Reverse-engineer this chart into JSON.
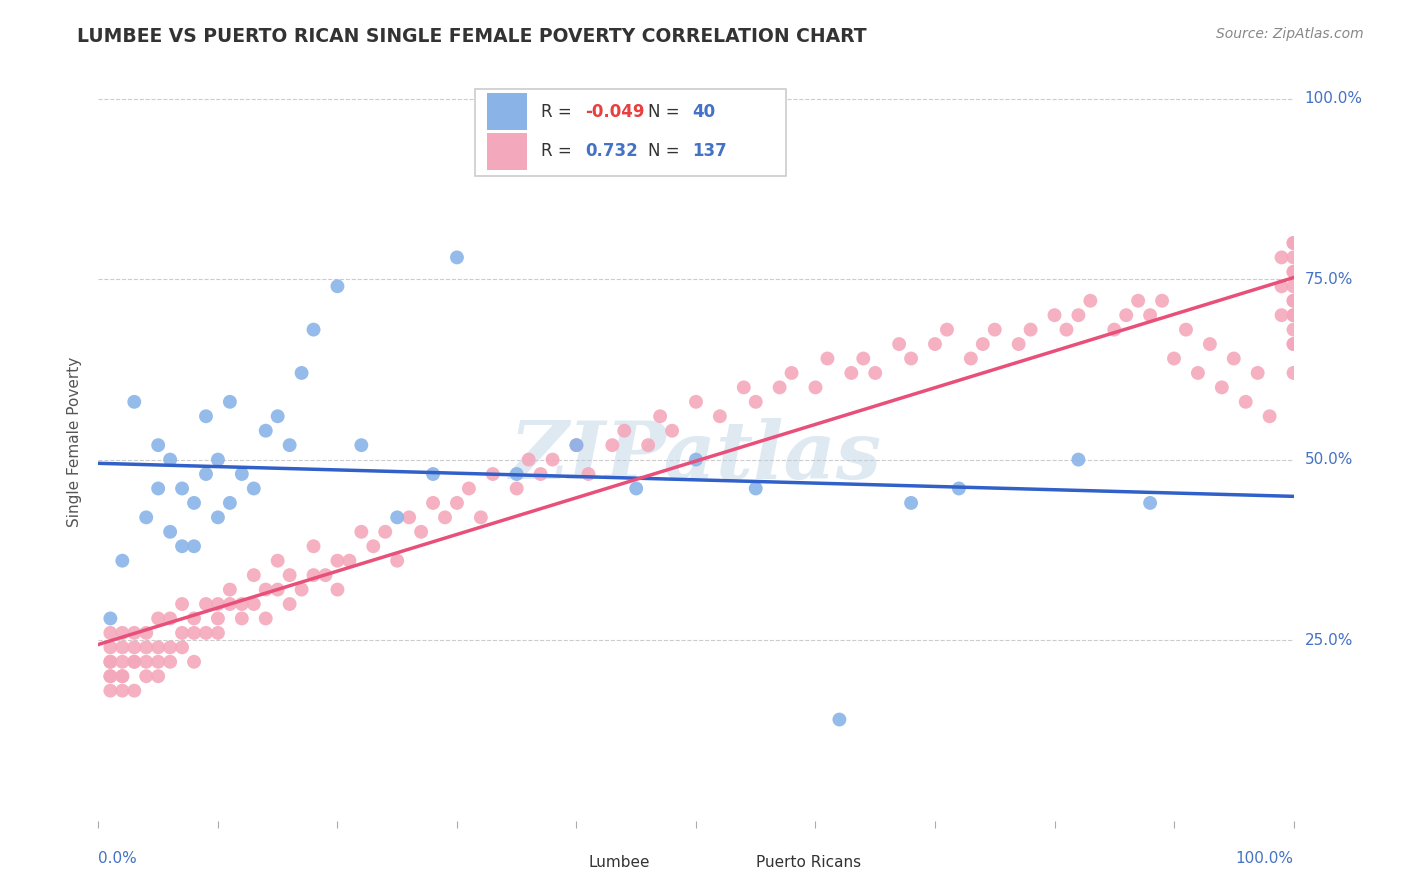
{
  "title": "LUMBEE VS PUERTO RICAN SINGLE FEMALE POVERTY CORRELATION CHART",
  "source": "Source: ZipAtlas.com",
  "ylabel": "Single Female Poverty",
  "lumbee_R": -0.049,
  "lumbee_N": 40,
  "pr_R": 0.732,
  "pr_N": 137,
  "lumbee_color": "#8ab4e8",
  "pr_color": "#f4a8bc",
  "lumbee_line_color": "#3060c8",
  "pr_line_color": "#e8507a",
  "watermark": "ZIPatlas",
  "background_color": "#ffffff",
  "grid_color": "#cccccc",
  "xlim": [
    0.0,
    1.0
  ],
  "ylim": [
    0.0,
    1.05
  ],
  "yticks": [
    0.25,
    0.5,
    0.75,
    1.0
  ],
  "ytick_labels": [
    "25.0%",
    "50.0%",
    "75.0%",
    "100.0%"
  ],
  "lumbee_x": [
    0.01,
    0.02,
    0.03,
    0.04,
    0.05,
    0.05,
    0.06,
    0.06,
    0.07,
    0.07,
    0.08,
    0.08,
    0.09,
    0.09,
    0.1,
    0.1,
    0.11,
    0.11,
    0.12,
    0.13,
    0.14,
    0.15,
    0.16,
    0.17,
    0.18,
    0.2,
    0.22,
    0.25,
    0.28,
    0.3,
    0.35,
    0.4,
    0.45,
    0.5,
    0.55,
    0.62,
    0.68,
    0.72,
    0.82,
    0.88
  ],
  "lumbee_y": [
    0.28,
    0.36,
    0.58,
    0.42,
    0.46,
    0.52,
    0.5,
    0.4,
    0.46,
    0.38,
    0.44,
    0.38,
    0.56,
    0.48,
    0.42,
    0.5,
    0.58,
    0.44,
    0.48,
    0.46,
    0.54,
    0.56,
    0.52,
    0.62,
    0.68,
    0.74,
    0.52,
    0.42,
    0.48,
    0.78,
    0.48,
    0.52,
    0.46,
    0.5,
    0.46,
    0.14,
    0.44,
    0.46,
    0.5,
    0.44
  ],
  "pr_x": [
    0.01,
    0.01,
    0.01,
    0.01,
    0.01,
    0.01,
    0.01,
    0.02,
    0.02,
    0.02,
    0.02,
    0.02,
    0.02,
    0.03,
    0.03,
    0.03,
    0.03,
    0.03,
    0.04,
    0.04,
    0.04,
    0.04,
    0.05,
    0.05,
    0.05,
    0.05,
    0.06,
    0.06,
    0.06,
    0.07,
    0.07,
    0.07,
    0.08,
    0.08,
    0.08,
    0.09,
    0.09,
    0.1,
    0.1,
    0.1,
    0.11,
    0.11,
    0.12,
    0.12,
    0.13,
    0.13,
    0.14,
    0.14,
    0.15,
    0.15,
    0.16,
    0.16,
    0.17,
    0.18,
    0.18,
    0.19,
    0.2,
    0.2,
    0.21,
    0.22,
    0.23,
    0.24,
    0.25,
    0.26,
    0.27,
    0.28,
    0.29,
    0.3,
    0.31,
    0.32,
    0.33,
    0.35,
    0.36,
    0.37,
    0.38,
    0.4,
    0.41,
    0.43,
    0.44,
    0.46,
    0.47,
    0.48,
    0.5,
    0.52,
    0.54,
    0.55,
    0.57,
    0.58,
    0.6,
    0.61,
    0.63,
    0.64,
    0.65,
    0.67,
    0.68,
    0.7,
    0.71,
    0.73,
    0.74,
    0.75,
    0.77,
    0.78,
    0.8,
    0.81,
    0.82,
    0.83,
    0.85,
    0.86,
    0.87,
    0.88,
    0.89,
    0.9,
    0.91,
    0.92,
    0.93,
    0.94,
    0.95,
    0.96,
    0.97,
    0.98,
    0.99,
    0.99,
    0.99,
    1.0,
    1.0,
    1.0,
    1.0,
    1.0,
    1.0,
    1.0,
    1.0,
    1.0,
    1.0,
    1.0,
    1.0,
    1.0,
    1.0
  ],
  "pr_y": [
    0.2,
    0.22,
    0.24,
    0.18,
    0.2,
    0.22,
    0.26,
    0.18,
    0.2,
    0.22,
    0.24,
    0.26,
    0.2,
    0.22,
    0.24,
    0.18,
    0.22,
    0.26,
    0.2,
    0.24,
    0.22,
    0.26,
    0.22,
    0.24,
    0.2,
    0.28,
    0.22,
    0.24,
    0.28,
    0.24,
    0.26,
    0.3,
    0.26,
    0.28,
    0.22,
    0.26,
    0.3,
    0.28,
    0.3,
    0.26,
    0.3,
    0.32,
    0.3,
    0.28,
    0.3,
    0.34,
    0.32,
    0.28,
    0.32,
    0.36,
    0.3,
    0.34,
    0.32,
    0.34,
    0.38,
    0.34,
    0.36,
    0.32,
    0.36,
    0.4,
    0.38,
    0.4,
    0.36,
    0.42,
    0.4,
    0.44,
    0.42,
    0.44,
    0.46,
    0.42,
    0.48,
    0.46,
    0.5,
    0.48,
    0.5,
    0.52,
    0.48,
    0.52,
    0.54,
    0.52,
    0.56,
    0.54,
    0.58,
    0.56,
    0.6,
    0.58,
    0.6,
    0.62,
    0.6,
    0.64,
    0.62,
    0.64,
    0.62,
    0.66,
    0.64,
    0.66,
    0.68,
    0.64,
    0.66,
    0.68,
    0.66,
    0.68,
    0.7,
    0.68,
    0.7,
    0.72,
    0.68,
    0.7,
    0.72,
    0.7,
    0.72,
    0.64,
    0.68,
    0.62,
    0.66,
    0.6,
    0.64,
    0.58,
    0.62,
    0.56,
    0.7,
    0.74,
    0.78,
    0.62,
    0.66,
    0.7,
    0.74,
    0.78,
    0.66,
    0.7,
    0.72,
    0.76,
    0.8,
    0.68,
    0.72,
    0.76,
    0.8
  ]
}
